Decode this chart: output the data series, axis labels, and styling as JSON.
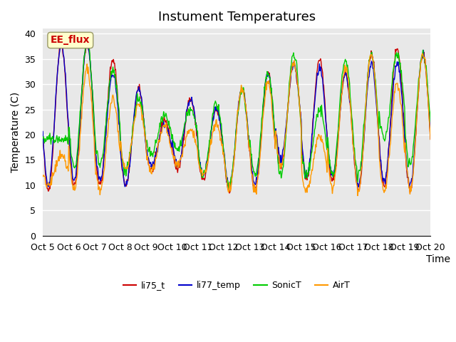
{
  "title": "Instument Temperatures",
  "ylabel": "Temperature (C)",
  "xlabel": "Time",
  "ylim": [
    0,
    41
  ],
  "yticks": [
    0,
    5,
    10,
    15,
    20,
    25,
    30,
    35,
    40
  ],
  "xtick_labels": [
    "Oct 5",
    "Oct 6",
    "Oct 7",
    "Oct 8",
    "Oct 9",
    "Oct 10",
    "Oct 11",
    "Oct 12",
    "Oct 13",
    "Oct 14",
    "Oct 15",
    "Oct 16",
    "Oct 17",
    "Oct 18",
    "Oct 19",
    "Oct 20"
  ],
  "colors": {
    "li75_t": "#cc0000",
    "li77_temp": "#0000cc",
    "SonicT": "#00cc00",
    "AirT": "#ff9900"
  },
  "legend_labels": [
    "li75_t",
    "li77_temp",
    "SonicT",
    "AirT"
  ],
  "ee_flux_label": "EE_flux",
  "ee_flux_color": "#cc0000",
  "ee_flux_bg": "#ffffcc",
  "background_color": "#e8e8e8",
  "fig_bg": "#ffffff",
  "grid_color": "#ffffff",
  "title_fontsize": 13,
  "axis_fontsize": 10,
  "tick_fontsize": 9
}
